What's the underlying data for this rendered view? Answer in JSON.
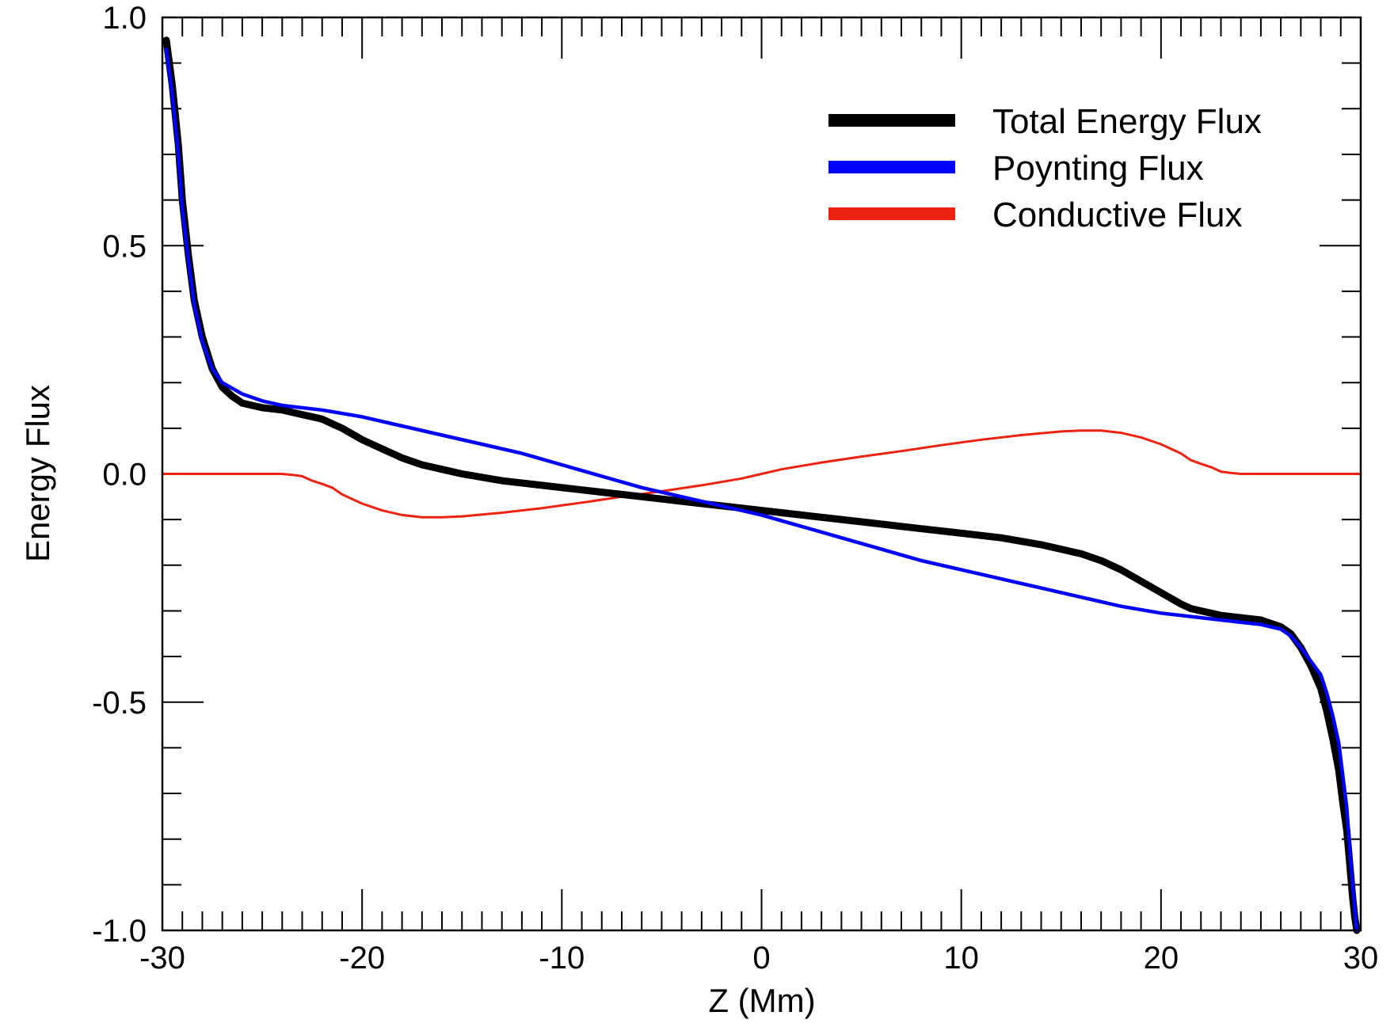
{
  "chart_data": {
    "type": "line",
    "title": "",
    "xlabel": "Z (Mm)",
    "ylabel": "Energy Flux",
    "xlim": [
      -30,
      30
    ],
    "ylim": [
      -1.0,
      1.0
    ],
    "grid": false,
    "legend_position": "top-right",
    "x_tick_labels": [
      "-30",
      "-20",
      "-10",
      "0",
      "10",
      "20",
      "30"
    ],
    "y_tick_labels": [
      "-1.0",
      "-0.5",
      "0.0",
      "0.5",
      "1.0"
    ],
    "series": [
      {
        "name": "Total Energy Flux",
        "color": "#000000",
        "style": "thick",
        "x": [
          -29.8,
          -29.5,
          -29.2,
          -29.0,
          -28.7,
          -28.4,
          -28.0,
          -27.5,
          -27.0,
          -26.5,
          -26.0,
          -25.0,
          -24.0,
          -23.0,
          -22.5,
          -22.0,
          -21.5,
          -21.0,
          -20.0,
          -19.0,
          -18.0,
          -17.0,
          -16.0,
          -15.0,
          -13.0,
          -11.0,
          -9.0,
          -7.0,
          -5.0,
          -3.0,
          -1.0,
          0.0,
          2.0,
          4.0,
          6.0,
          8.0,
          10.0,
          12.0,
          14.0,
          16.0,
          17.0,
          18.0,
          19.0,
          20.0,
          21.0,
          21.5,
          22.0,
          22.5,
          23.0,
          24.0,
          25.0,
          26.0,
          26.5,
          27.0,
          27.5,
          28.0,
          28.3,
          28.6,
          28.9,
          29.1,
          29.3,
          29.4,
          29.5,
          29.6,
          29.7,
          29.8
        ],
        "y": [
          0.95,
          0.85,
          0.72,
          0.6,
          0.48,
          0.38,
          0.3,
          0.23,
          0.19,
          0.17,
          0.155,
          0.145,
          0.14,
          0.13,
          0.125,
          0.12,
          0.11,
          0.1,
          0.075,
          0.055,
          0.035,
          0.02,
          0.01,
          0.0,
          -0.015,
          -0.025,
          -0.035,
          -0.045,
          -0.055,
          -0.065,
          -0.075,
          -0.08,
          -0.09,
          -0.1,
          -0.11,
          -0.12,
          -0.13,
          -0.14,
          -0.155,
          -0.175,
          -0.19,
          -0.21,
          -0.235,
          -0.26,
          -0.285,
          -0.295,
          -0.3,
          -0.305,
          -0.31,
          -0.315,
          -0.32,
          -0.335,
          -0.35,
          -0.38,
          -0.42,
          -0.47,
          -0.52,
          -0.58,
          -0.65,
          -0.72,
          -0.78,
          -0.83,
          -0.88,
          -0.93,
          -0.97,
          -1.0
        ]
      },
      {
        "name": "Poynting Flux",
        "color": "#0000ff",
        "style": "medium",
        "x": [
          -29.8,
          -29.5,
          -29.2,
          -29.0,
          -28.7,
          -28.4,
          -28.0,
          -27.5,
          -27.0,
          -26.0,
          -25.0,
          -24.0,
          -22.0,
          -20.0,
          -18.0,
          -16.0,
          -14.0,
          -12.0,
          -10.0,
          -8.0,
          -6.0,
          -4.0,
          -2.0,
          0.0,
          2.0,
          4.0,
          6.0,
          8.0,
          10.0,
          12.0,
          14.0,
          16.0,
          18.0,
          20.0,
          22.0,
          23.0,
          24.0,
          25.0,
          26.0,
          26.5,
          27.0,
          27.5,
          28.0,
          28.3,
          28.6,
          28.9,
          29.1,
          29.3,
          29.4,
          29.5,
          29.6,
          29.7,
          29.8
        ],
        "y": [
          0.93,
          0.83,
          0.7,
          0.58,
          0.47,
          0.37,
          0.29,
          0.23,
          0.2,
          0.175,
          0.16,
          0.15,
          0.14,
          0.125,
          0.105,
          0.085,
          0.065,
          0.045,
          0.02,
          -0.005,
          -0.03,
          -0.05,
          -0.07,
          -0.09,
          -0.115,
          -0.14,
          -0.165,
          -0.19,
          -0.21,
          -0.23,
          -0.25,
          -0.27,
          -0.29,
          -0.305,
          -0.315,
          -0.32,
          -0.325,
          -0.33,
          -0.34,
          -0.355,
          -0.38,
          -0.41,
          -0.44,
          -0.48,
          -0.53,
          -0.59,
          -0.66,
          -0.73,
          -0.79,
          -0.85,
          -0.9,
          -0.95,
          -1.0
        ]
      },
      {
        "name": "Conductive Flux",
        "color": "#ee2211",
        "style": "thin",
        "x": [
          -30.0,
          -28.0,
          -26.0,
          -24.0,
          -23.5,
          -23.0,
          -22.5,
          -22.0,
          -21.5,
          -21.0,
          -20.0,
          -19.0,
          -18.0,
          -17.0,
          -16.0,
          -15.0,
          -13.0,
          -11.0,
          -9.0,
          -7.0,
          -5.0,
          -3.0,
          -1.0,
          0.0,
          1.0,
          3.0,
          5.0,
          7.0,
          9.0,
          11.0,
          13.0,
          15.0,
          16.0,
          17.0,
          18.0,
          19.0,
          20.0,
          21.0,
          21.5,
          22.0,
          22.5,
          23.0,
          23.5,
          24.0,
          26.0,
          28.0,
          30.0
        ],
        "y": [
          0.0,
          0.0,
          0.0,
          0.0,
          -0.002,
          -0.005,
          -0.015,
          -0.022,
          -0.03,
          -0.045,
          -0.065,
          -0.08,
          -0.09,
          -0.095,
          -0.095,
          -0.093,
          -0.085,
          -0.075,
          -0.063,
          -0.05,
          -0.038,
          -0.025,
          -0.01,
          0.0,
          0.01,
          0.025,
          0.038,
          0.05,
          0.063,
          0.075,
          0.085,
          0.093,
          0.095,
          0.095,
          0.09,
          0.08,
          0.065,
          0.045,
          0.03,
          0.022,
          0.015,
          0.005,
          0.002,
          0.0,
          0.0,
          0.0,
          0.0
        ]
      }
    ]
  }
}
